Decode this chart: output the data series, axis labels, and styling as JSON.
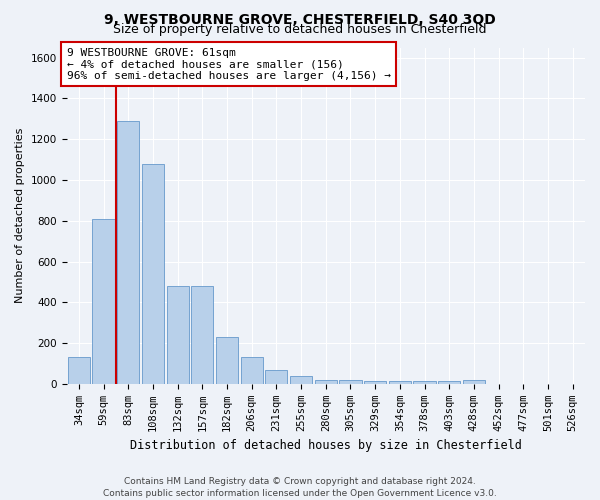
{
  "title": "9, WESTBOURNE GROVE, CHESTERFIELD, S40 3QD",
  "subtitle": "Size of property relative to detached houses in Chesterfield",
  "xlabel": "Distribution of detached houses by size in Chesterfield",
  "ylabel": "Number of detached properties",
  "categories": [
    "34sqm",
    "59sqm",
    "83sqm",
    "108sqm",
    "132sqm",
    "157sqm",
    "182sqm",
    "206sqm",
    "231sqm",
    "255sqm",
    "280sqm",
    "305sqm",
    "329sqm",
    "354sqm",
    "378sqm",
    "403sqm",
    "428sqm",
    "452sqm",
    "477sqm",
    "501sqm",
    "526sqm"
  ],
  "values": [
    130,
    810,
    1290,
    1080,
    480,
    480,
    230,
    130,
    70,
    40,
    20,
    20,
    15,
    15,
    15,
    15,
    20,
    0,
    0,
    0,
    0
  ],
  "bar_color": "#b8d0ea",
  "bar_edge_color": "#6699cc",
  "annotation_box_text": "9 WESTBOURNE GROVE: 61sqm\n← 4% of detached houses are smaller (156)\n96% of semi-detached houses are larger (4,156) →",
  "annotation_box_color": "white",
  "annotation_box_edge_color": "#cc0000",
  "vline_color": "#cc0000",
  "vline_x_index": 1.5,
  "ylim": [
    0,
    1650
  ],
  "yticks": [
    0,
    200,
    400,
    600,
    800,
    1000,
    1200,
    1400,
    1600
  ],
  "footer_text": "Contains HM Land Registry data © Crown copyright and database right 2024.\nContains public sector information licensed under the Open Government Licence v3.0.",
  "background_color": "#eef2f8",
  "grid_color": "white",
  "title_fontsize": 10,
  "subtitle_fontsize": 9,
  "annotation_fontsize": 8,
  "ylabel_fontsize": 8,
  "xlabel_fontsize": 8.5,
  "footer_fontsize": 6.5,
  "tick_fontsize": 7.5
}
